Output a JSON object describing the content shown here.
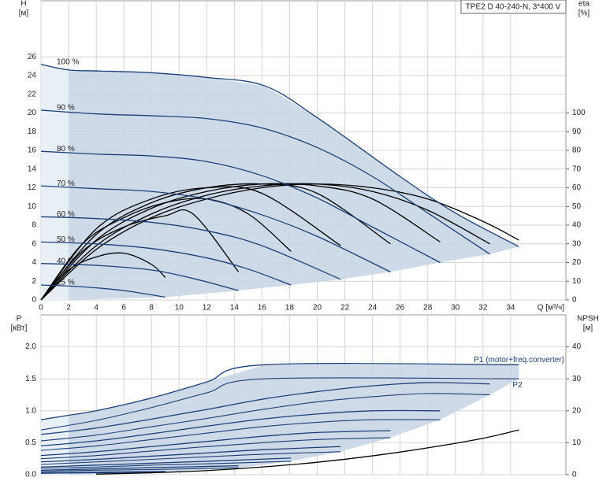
{
  "header": {
    "model": "TPE2 D 40-240-N, 3*400 V"
  },
  "chart_data": [
    {
      "type": "line",
      "ylabel": "H",
      "yunit": "[м]",
      "y2label": "eta",
      "y2unit": "[%]",
      "xlabel": "Q [м³/ч]",
      "xlim": [
        0,
        38
      ],
      "xticks": [
        0,
        2,
        4,
        6,
        8,
        10,
        12,
        14,
        16,
        18,
        20,
        22,
        24,
        26,
        28,
        30,
        32,
        34
      ],
      "ylim": [
        0,
        32
      ],
      "yticks": [
        0,
        2,
        4,
        6,
        8,
        10,
        12,
        14,
        16,
        18,
        20,
        22,
        24,
        26
      ],
      "y2lim": [
        0,
        160
      ],
      "y2ticks": [
        0,
        10,
        20,
        30,
        40,
        50,
        60,
        70,
        80,
        90,
        100
      ],
      "grid": true,
      "fill_color": "#c9d6e4",
      "fill_light": "#e8eff7",
      "speed_series": [
        {
          "name": "100 %",
          "color": "#1c3f78",
          "x": [
            0,
            2,
            4,
            8,
            12,
            16.2,
            20,
            26,
            30,
            34.6
          ],
          "values": [
            25.2,
            24.6,
            24.5,
            24.3,
            23.8,
            22.9,
            19.5,
            13.2,
            9.3,
            5.7
          ]
        },
        {
          "name": "90 %",
          "color": "#1c3f78",
          "x": [
            0,
            4,
            8,
            12,
            16,
            20,
            24,
            28,
            32.5
          ],
          "values": [
            20.3,
            19.9,
            19.7,
            19.4,
            18.4,
            16.3,
            13.2,
            9.3,
            4.9
          ]
        },
        {
          "name": "80 %",
          "color": "#1c3f78",
          "x": [
            0,
            4,
            8,
            12,
            16,
            20,
            24,
            28.9
          ],
          "values": [
            15.9,
            15.6,
            15.4,
            14.8,
            13.3,
            10.9,
            7.8,
            4.0
          ]
        },
        {
          "name": "70 %",
          "color": "#1c3f78",
          "x": [
            0,
            4,
            8,
            12,
            16,
            20,
            25.3
          ],
          "values": [
            12.2,
            11.9,
            11.6,
            10.8,
            9.1,
            6.8,
            3.0
          ]
        },
        {
          "name": "60 %",
          "color": "#1c3f78",
          "x": [
            0,
            4,
            8,
            12,
            16,
            21.7
          ],
          "values": [
            8.9,
            8.7,
            8.3,
            7.4,
            5.8,
            2.2
          ]
        },
        {
          "name": "50 %",
          "color": "#1c3f78",
          "x": [
            0,
            4,
            8,
            12,
            15,
            18.1
          ],
          "values": [
            6.2,
            6.0,
            5.5,
            4.5,
            3.3,
            1.6
          ]
        },
        {
          "name": "40 %",
          "color": "#1c3f78",
          "x": [
            0,
            4,
            8,
            11,
            14.3
          ],
          "values": [
            3.9,
            3.7,
            3.2,
            2.3,
            1.0
          ]
        },
        {
          "name": "25 %",
          "color": "#1c3f78",
          "x": [
            0,
            3,
            6,
            9
          ],
          "values": [
            1.6,
            1.4,
            1.0,
            0.3
          ]
        }
      ],
      "eta_series": [
        {
          "color": "#000000",
          "axis": "y2",
          "x": [
            0,
            4,
            8,
            12,
            16,
            20,
            24,
            28,
            32,
            34.6
          ],
          "values": [
            0,
            27,
            44,
            54,
            60,
            62,
            60,
            54,
            42,
            32
          ]
        },
        {
          "color": "#000000",
          "axis": "y2",
          "x": [
            0,
            4,
            8,
            12,
            16,
            20,
            24,
            28,
            32.5
          ],
          "values": [
            0,
            29,
            46,
            56,
            61,
            62,
            58,
            48,
            30
          ]
        },
        {
          "color": "#000000",
          "axis": "y2",
          "x": [
            0,
            4,
            8,
            12,
            16,
            20,
            24,
            28.9
          ],
          "values": [
            0,
            32,
            49,
            58,
            62,
            61,
            54,
            31
          ]
        },
        {
          "color": "#000000",
          "axis": "y2",
          "x": [
            0,
            4,
            8,
            12,
            16,
            20,
            25.3
          ],
          "values": [
            0,
            35,
            52,
            60,
            62,
            57,
            30
          ]
        },
        {
          "color": "#000000",
          "axis": "y2",
          "x": [
            0,
            4,
            8,
            12,
            16,
            21.7
          ],
          "values": [
            0,
            38,
            54,
            60,
            57,
            29
          ]
        },
        {
          "color": "#000000",
          "axis": "y2",
          "x": [
            0,
            3,
            6,
            9,
            12,
            15,
            18.1
          ],
          "values": [
            0,
            30,
            44,
            52,
            54,
            46,
            26
          ]
        },
        {
          "color": "#000000",
          "axis": "y2",
          "x": [
            0,
            3,
            6,
            9,
            11,
            14.3
          ],
          "values": [
            0,
            26,
            39,
            45,
            46,
            15
          ]
        },
        {
          "color": "#000000",
          "axis": "y2",
          "x": [
            0,
            2,
            4,
            6,
            8,
            9
          ],
          "values": [
            0,
            16,
            23,
            25,
            19,
            12
          ]
        }
      ]
    },
    {
      "type": "line",
      "ylabel": "P",
      "yunit": "[кВт]",
      "y2label": "NPSH",
      "y2unit": "[м]",
      "ylim": [
        0,
        2.5
      ],
      "yticks": [
        {
          "value": 0,
          "label": "0.0"
        },
        0.5,
        {
          "value": 1,
          "label": "1.0"
        },
        1.5,
        {
          "value": 2,
          "label": "2.0"
        }
      ],
      "y2lim": [
        0,
        50
      ],
      "y2ticks": [
        0,
        10,
        20,
        30,
        40
      ],
      "grid": true,
      "annotations": [
        "P1 (motor+freq.converter)",
        "P2"
      ],
      "p1_series": [
        {
          "color": "#1c3f78",
          "x": [
            0,
            2,
            4,
            8,
            12,
            16.2,
            34.6
          ],
          "values": [
            0.86,
            0.93,
            1.0,
            1.2,
            1.45,
            1.72,
            1.72
          ]
        },
        {
          "color": "#1c3f78",
          "x": [
            0,
            4,
            8,
            12,
            16,
            20,
            24,
            28,
            32.5
          ],
          "values": [
            0.63,
            0.73,
            0.87,
            1.02,
            1.18,
            1.3,
            1.39,
            1.44,
            1.42
          ]
        },
        {
          "color": "#1c3f78",
          "x": [
            0,
            4,
            8,
            12,
            16,
            20,
            24,
            28.9
          ],
          "values": [
            0.45,
            0.53,
            0.64,
            0.76,
            0.87,
            0.95,
            1.0,
            1.0
          ]
        },
        {
          "color": "#1c3f78",
          "x": [
            0,
            4,
            8,
            12,
            16,
            20,
            25.3
          ],
          "values": [
            0.3,
            0.36,
            0.44,
            0.52,
            0.6,
            0.66,
            0.69
          ]
        },
        {
          "color": "#1c3f78",
          "x": [
            0,
            4,
            8,
            12,
            16,
            21.7
          ],
          "values": [
            0.2,
            0.24,
            0.29,
            0.34,
            0.39,
            0.44
          ]
        },
        {
          "color": "#1c3f78",
          "x": [
            0,
            4,
            8,
            12,
            18.1
          ],
          "values": [
            0.12,
            0.15,
            0.18,
            0.21,
            0.26
          ]
        },
        {
          "color": "#1c3f78",
          "x": [
            0,
            4,
            8,
            14.3
          ],
          "values": [
            0.07,
            0.09,
            0.11,
            0.14
          ]
        },
        {
          "color": "#1c3f78",
          "x": [
            0,
            4,
            9
          ],
          "values": [
            0.03,
            0.04,
            0.05
          ]
        }
      ],
      "p2_series": [
        {
          "color": "#1c3f78",
          "x": [
            0,
            4,
            8,
            12,
            16.2,
            34.6
          ],
          "values": [
            0.7,
            0.85,
            1.05,
            1.28,
            1.5,
            1.5
          ]
        },
        {
          "color": "#1c3f78",
          "x": [
            0,
            4,
            8,
            12,
            16,
            20,
            24,
            28,
            32.5
          ],
          "values": [
            0.53,
            0.62,
            0.75,
            0.88,
            1.02,
            1.14,
            1.22,
            1.27,
            1.25
          ]
        },
        {
          "color": "#1c3f78",
          "x": [
            0,
            4,
            8,
            12,
            16,
            20,
            24,
            28.9
          ],
          "values": [
            0.38,
            0.45,
            0.55,
            0.65,
            0.75,
            0.82,
            0.86,
            0.86
          ]
        },
        {
          "color": "#1c3f78",
          "x": [
            0,
            4,
            8,
            12,
            16,
            20,
            25.3
          ],
          "values": [
            0.25,
            0.3,
            0.37,
            0.44,
            0.5,
            0.55,
            0.58
          ]
        },
        {
          "color": "#1c3f78",
          "x": [
            0,
            4,
            8,
            12,
            16,
            21.7
          ],
          "values": [
            0.16,
            0.2,
            0.24,
            0.28,
            0.32,
            0.36
          ]
        },
        {
          "color": "#1c3f78",
          "x": [
            0,
            4,
            8,
            12,
            18.1
          ],
          "values": [
            0.1,
            0.12,
            0.15,
            0.17,
            0.21
          ]
        },
        {
          "color": "#1c3f78",
          "x": [
            0,
            4,
            8,
            14.3
          ],
          "values": [
            0.05,
            0.07,
            0.08,
            0.11
          ]
        },
        {
          "color": "#1c3f78",
          "x": [
            0,
            4,
            9
          ],
          "values": [
            0.02,
            0.03,
            0.04
          ]
        }
      ],
      "npsh_series": [
        {
          "color": "#000000",
          "axis": "y2",
          "x": [
            4,
            8,
            12,
            16,
            20,
            24,
            28,
            32,
            34.6
          ],
          "values": [
            0.2,
            0.6,
            1.3,
            2.4,
            3.9,
            5.9,
            8.4,
            11.4,
            14
          ]
        }
      ]
    }
  ]
}
